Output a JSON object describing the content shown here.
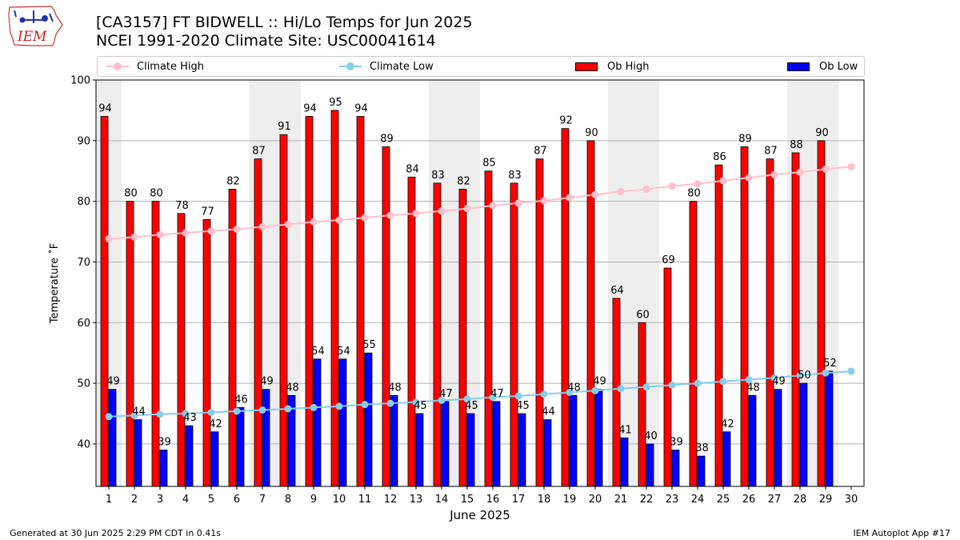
{
  "header": {
    "title_line1": "[CA3157] FT BIDWELL :: Hi/Lo Temps for Jun 2025",
    "title_line2": "NCEI 1991-2020 Climate Site: USC00041614"
  },
  "logo": {
    "text": "IEM",
    "icon": "iowa-state-outline-icon"
  },
  "footer": {
    "left": "Generated at 30 Jun 2025 2:29 PM CDT in 0.41s",
    "right": "IEM Autoplot App #17"
  },
  "legend": {
    "placement": "top",
    "items": [
      {
        "label": "Climate High",
        "kind": "line",
        "color": "#ffc0cb"
      },
      {
        "label": "Climate Low",
        "kind": "line",
        "color": "#87ceeb"
      },
      {
        "label": "Ob High",
        "kind": "box",
        "color": "#ff0000"
      },
      {
        "label": "Ob Low",
        "kind": "box",
        "color": "#0000ff"
      }
    ]
  },
  "chart_data": {
    "type": "bar",
    "xlabel": "June 2025",
    "ylabel": "Temperature ˚F",
    "ylim": [
      33,
      100
    ],
    "yticks": [
      40,
      50,
      60,
      70,
      80,
      90,
      100
    ],
    "grid": "horizontal",
    "categories": [
      1,
      2,
      3,
      4,
      5,
      6,
      7,
      8,
      9,
      10,
      11,
      12,
      13,
      14,
      15,
      16,
      17,
      18,
      19,
      20,
      21,
      22,
      23,
      24,
      25,
      26,
      27,
      28,
      29,
      30
    ],
    "weekend_shading_days": [
      [
        1,
        1
      ],
      [
        7,
        8
      ],
      [
        14,
        15
      ],
      [
        21,
        22
      ],
      [
        28,
        29
      ]
    ],
    "series": [
      {
        "name": "Ob High",
        "kind": "bar",
        "color": "#ff0000",
        "values": [
          94,
          80,
          80,
          78,
          77,
          82,
          87,
          91,
          94,
          95,
          94,
          89,
          84,
          83,
          82,
          85,
          83,
          87,
          92,
          90,
          64,
          60,
          69,
          80,
          86,
          89,
          87,
          88,
          90,
          null
        ]
      },
      {
        "name": "Ob Low",
        "kind": "bar",
        "color": "#0000ff",
        "values": [
          49,
          44,
          39,
          43,
          42,
          46,
          49,
          48,
          54,
          54,
          55,
          48,
          45,
          47,
          45,
          47,
          45,
          44,
          48,
          49,
          41,
          40,
          39,
          38,
          42,
          48,
          49,
          50,
          52,
          null
        ]
      },
      {
        "name": "Climate High",
        "kind": "line",
        "color": "#ffc0cb",
        "values": [
          73.8,
          74.1,
          74.5,
          74.8,
          75.1,
          75.4,
          75.8,
          76.2,
          76.6,
          76.9,
          77.3,
          77.7,
          78.0,
          78.4,
          78.8,
          79.3,
          79.7,
          80.1,
          80.6,
          81.1,
          81.6,
          82.0,
          82.5,
          82.9,
          83.4,
          83.9,
          84.4,
          84.8,
          85.3,
          85.7
        ]
      },
      {
        "name": "Climate Low",
        "kind": "line",
        "color": "#87ceeb",
        "values": [
          44.5,
          44.7,
          44.9,
          45.0,
          45.2,
          45.4,
          45.6,
          45.8,
          46.0,
          46.2,
          46.5,
          46.7,
          46.9,
          47.2,
          47.4,
          47.7,
          47.9,
          48.2,
          48.5,
          48.8,
          49.1,
          49.4,
          49.7,
          50.0,
          50.3,
          50.6,
          50.9,
          51.3,
          51.7,
          52.0
        ]
      }
    ]
  }
}
